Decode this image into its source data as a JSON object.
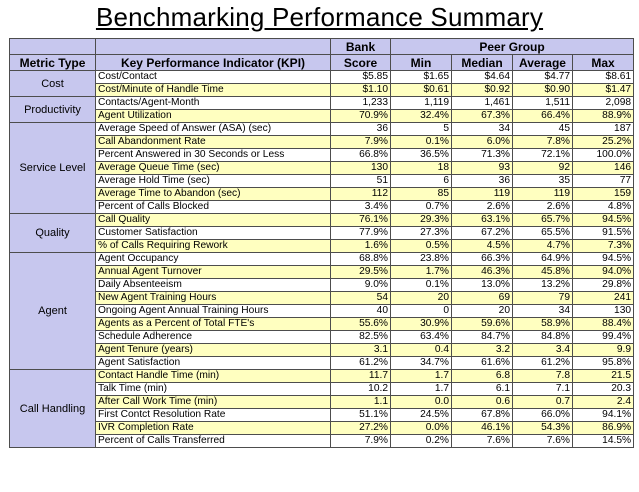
{
  "title": "Benchmarking Performance Summary",
  "header": {
    "metric_type": "Metric Type",
    "kpi": "Key Performance Indicator (KPI)",
    "bank_top": "Bank",
    "bank_bottom": "Score",
    "peer_group": "Peer Group",
    "min": "Min",
    "median": "Median",
    "average": "Average",
    "max": "Max"
  },
  "groups": [
    {
      "name": "Cost",
      "rows": [
        {
          "kpi": "Cost/Contact",
          "bank": "$5.85",
          "min": "$1.65",
          "median": "$4.64",
          "average": "$4.77",
          "max": "$8.61"
        },
        {
          "kpi": "Cost/Minute of Handle Time",
          "bank": "$1.10",
          "min": "$0.61",
          "median": "$0.92",
          "average": "$0.90",
          "max": "$1.47"
        }
      ]
    },
    {
      "name": "Productivity",
      "rows": [
        {
          "kpi": "Contacts/Agent-Month",
          "bank": "1,233",
          "min": "1,119",
          "median": "1,461",
          "average": "1,511",
          "max": "2,098"
        },
        {
          "kpi": "Agent Utilization",
          "bank": "70.9%",
          "min": "32.4%",
          "median": "67.3%",
          "average": "66.4%",
          "max": "88.9%"
        }
      ]
    },
    {
      "name": "Service Level",
      "rows": [
        {
          "kpi": "Average Speed of Answer (ASA) (sec)",
          "bank": "36",
          "min": "5",
          "median": "34",
          "average": "45",
          "max": "187"
        },
        {
          "kpi": "Call Abandonment Rate",
          "bank": "7.9%",
          "min": "0.1%",
          "median": "6.0%",
          "average": "7.8%",
          "max": "25.2%"
        },
        {
          "kpi": "Percent Answered in 30 Seconds or Less",
          "bank": "66.8%",
          "min": "36.5%",
          "median": "71.3%",
          "average": "72.1%",
          "max": "100.0%"
        },
        {
          "kpi": "Average Queue Time (sec)",
          "bank": "130",
          "min": "18",
          "median": "93",
          "average": "92",
          "max": "146"
        },
        {
          "kpi": "Average Hold Time (sec)",
          "bank": "51",
          "min": "6",
          "median": "36",
          "average": "35",
          "max": "77"
        },
        {
          "kpi": "Average Time to Abandon (sec)",
          "bank": "112",
          "min": "85",
          "median": "119",
          "average": "119",
          "max": "159"
        },
        {
          "kpi": "Percent of Calls Blocked",
          "bank": "3.4%",
          "min": "0.7%",
          "median": "2.6%",
          "average": "2.6%",
          "max": "4.8%"
        }
      ]
    },
    {
      "name": "Quality",
      "rows": [
        {
          "kpi": "Call Quality",
          "bank": "76.1%",
          "min": "29.3%",
          "median": "63.1%",
          "average": "65.7%",
          "max": "94.5%"
        },
        {
          "kpi": "Customer Satisfaction",
          "bank": "77.9%",
          "min": "27.3%",
          "median": "67.2%",
          "average": "65.5%",
          "max": "91.5%"
        },
        {
          "kpi": "% of Calls Requiring Rework",
          "bank": "1.6%",
          "min": "0.5%",
          "median": "4.5%",
          "average": "4.7%",
          "max": "7.3%"
        }
      ]
    },
    {
      "name": "Agent",
      "rows": [
        {
          "kpi": "Agent Occupancy",
          "bank": "68.8%",
          "min": "23.8%",
          "median": "66.3%",
          "average": "64.9%",
          "max": "94.5%"
        },
        {
          "kpi": "Annual Agent Turnover",
          "bank": "29.5%",
          "min": "1.7%",
          "median": "46.3%",
          "average": "45.8%",
          "max": "94.0%"
        },
        {
          "kpi": "Daily Absenteeism",
          "bank": "9.0%",
          "min": "0.1%",
          "median": "13.0%",
          "average": "13.2%",
          "max": "29.8%"
        },
        {
          "kpi": "New Agent Training Hours",
          "bank": "54",
          "min": "20",
          "median": "69",
          "average": "79",
          "max": "241"
        },
        {
          "kpi": "Ongoing Agent Annual Training Hours",
          "bank": "40",
          "min": "0",
          "median": "20",
          "average": "34",
          "max": "130"
        },
        {
          "kpi": "Agents as a Percent of Total FTE's",
          "bank": "55.6%",
          "min": "30.9%",
          "median": "59.6%",
          "average": "58.9%",
          "max": "88.4%"
        },
        {
          "kpi": "Schedule Adherence",
          "bank": "82.5%",
          "min": "63.4%",
          "median": "84.7%",
          "average": "84.8%",
          "max": "99.4%"
        },
        {
          "kpi": "Agent Tenure (years)",
          "bank": "3.1",
          "min": "0.4",
          "median": "3.2",
          "average": "3.4",
          "max": "9.9"
        },
        {
          "kpi": "Agent Satisfaction",
          "bank": "61.2%",
          "min": "34.7%",
          "median": "61.6%",
          "average": "61.2%",
          "max": "95.8%"
        }
      ]
    },
    {
      "name": "Call Handling",
      "rows": [
        {
          "kpi": "Contact Handle Time (min)",
          "bank": "11.7",
          "min": "1.7",
          "median": "6.8",
          "average": "7.8",
          "max": "21.5"
        },
        {
          "kpi": "Talk Time (min)",
          "bank": "10.2",
          "min": "1.7",
          "median": "6.1",
          "average": "7.1",
          "max": "20.3"
        },
        {
          "kpi": "After Call Work Time (min)",
          "bank": "1.1",
          "min": "0.0",
          "median": "0.6",
          "average": "0.7",
          "max": "2.4"
        },
        {
          "kpi": "First Contct Resolution Rate",
          "bank": "51.1%",
          "min": "24.5%",
          "median": "67.8%",
          "average": "66.0%",
          "max": "94.1%"
        },
        {
          "kpi": "IVR Completion Rate",
          "bank": "27.2%",
          "min": "0.0%",
          "median": "46.1%",
          "average": "54.3%",
          "max": "86.9%"
        },
        {
          "kpi": "Percent of Calls Transferred",
          "bank": "7.9%",
          "min": "0.2%",
          "median": "7.6%",
          "average": "7.6%",
          "max": "14.5%"
        }
      ]
    }
  ]
}
